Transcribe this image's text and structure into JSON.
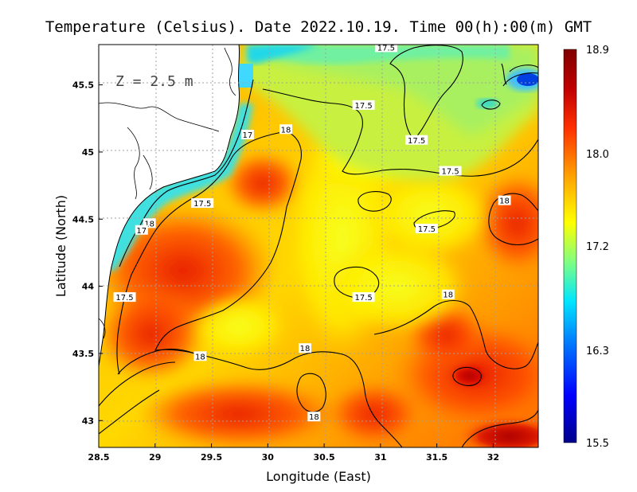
{
  "title": "Temperature (Celsius). Date 2022.10.19. Time 00(h):00(m) GMT",
  "depth_label": "Z  =  2.5 m",
  "xlabel": "Longitude (East)",
  "ylabel": "Latitude (North)",
  "chart_data": {
    "type": "heatmap",
    "x_range": [
      28.5,
      32.4
    ],
    "y_range": [
      42.8,
      45.8
    ],
    "x_ticks": [
      "28.5",
      "29",
      "29.5",
      "30",
      "30.5",
      "31",
      "31.5",
      "32"
    ],
    "y_ticks": [
      "43",
      "43.5",
      "44",
      "44.5",
      "45",
      "45.5"
    ],
    "colorbar": {
      "min": 15.5,
      "max": 18.9,
      "labels": [
        "18.9",
        "18.0",
        "17.2",
        "16.3",
        "15.5"
      ],
      "colors": [
        "#00008b",
        "#0000ff",
        "#0080ff",
        "#00e6ff",
        "#80ff80",
        "#ffff00",
        "#ffa000",
        "#ff3000",
        "#c00000",
        "#800000"
      ]
    },
    "contour_labels": [
      {
        "text": "17.5",
        "lon": 30.85,
        "lat": 45.35
      },
      {
        "text": "17.5",
        "lon": 31.05,
        "lat": 45.78
      },
      {
        "text": "17.5",
        "lon": 31.32,
        "lat": 45.09
      },
      {
        "text": "17.5",
        "lon": 31.62,
        "lat": 44.86
      },
      {
        "text": "18",
        "lon": 30.16,
        "lat": 45.17
      },
      {
        "text": "17",
        "lon": 29.82,
        "lat": 45.13
      },
      {
        "text": "17.5",
        "lon": 29.42,
        "lat": 44.62
      },
      {
        "text": "17.5",
        "lon": 31.41,
        "lat": 44.43
      },
      {
        "text": "18",
        "lon": 32.1,
        "lat": 44.64
      },
      {
        "text": "18",
        "lon": 28.95,
        "lat": 44.47
      },
      {
        "text": "17",
        "lon": 28.88,
        "lat": 44.42
      },
      {
        "text": "17.5",
        "lon": 28.73,
        "lat": 43.92
      },
      {
        "text": "17.5",
        "lon": 30.85,
        "lat": 43.92
      },
      {
        "text": "18",
        "lon": 31.6,
        "lat": 43.94
      },
      {
        "text": "18",
        "lon": 30.33,
        "lat": 43.54
      },
      {
        "text": "18",
        "lon": 29.4,
        "lat": 43.48
      },
      {
        "text": "18",
        "lon": 30.41,
        "lat": 43.03
      }
    ]
  }
}
